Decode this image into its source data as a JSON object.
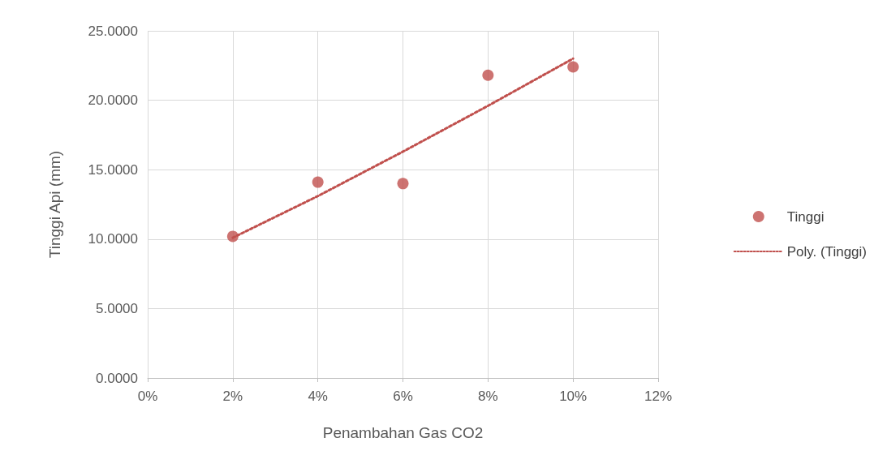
{
  "chart_data": {
    "type": "scatter",
    "xlabel": "Penambahan Gas CO2",
    "ylabel": "Tinggi Api (mm)",
    "series": [
      {
        "name": "Tinggi",
        "color": "#c0504d",
        "marker": "circle",
        "x": [
          2,
          4,
          6,
          8,
          10
        ],
        "values": [
          10.2,
          14.1,
          14.0,
          21.8,
          22.4
        ]
      },
      {
        "name": "Poly. (Tinggi)",
        "type": "line",
        "color": "#c0504d",
        "marker": "none",
        "line_style": "dotted",
        "x": [
          2,
          4,
          6,
          8,
          10
        ],
        "values": [
          10.1,
          13.1,
          16.3,
          19.6,
          23.0
        ]
      }
    ],
    "xlim": [
      0,
      12
    ],
    "xticks": [
      {
        "value": 0,
        "label": "0%"
      },
      {
        "value": 2,
        "label": "2%"
      },
      {
        "value": 4,
        "label": "4%"
      },
      {
        "value": 6,
        "label": "6%"
      },
      {
        "value": 8,
        "label": "8%"
      },
      {
        "value": 10,
        "label": "10%"
      },
      {
        "value": 12,
        "label": "12%"
      }
    ],
    "ylim": [
      0,
      25
    ],
    "yticks": [
      {
        "value": 0,
        "label": "0.0000"
      },
      {
        "value": 5,
        "label": "5.0000"
      },
      {
        "value": 10,
        "label": "10.0000"
      },
      {
        "value": 15,
        "label": "15.0000"
      },
      {
        "value": 20,
        "label": "20.0000"
      },
      {
        "value": 25,
        "label": "25.0000"
      }
    ],
    "grid": true,
    "legend": "right"
  }
}
